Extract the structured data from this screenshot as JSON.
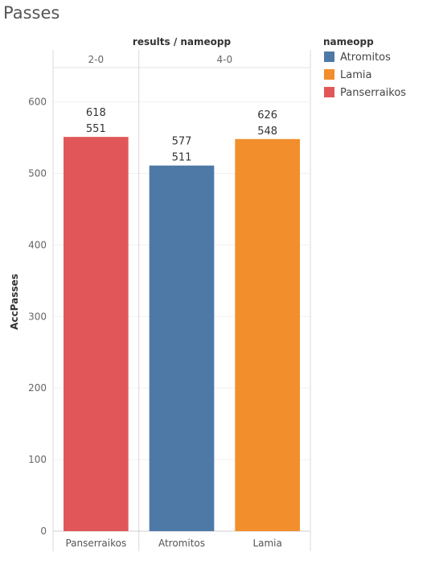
{
  "title": "Passes",
  "column_header": "results / nameopp",
  "legend": {
    "title": "nameopp",
    "items": [
      {
        "label": "Atromitos",
        "color": "#4e79a7"
      },
      {
        "label": "Lamia",
        "color": "#f28e2b"
      },
      {
        "label": "Panserraikos",
        "color": "#e15759"
      }
    ]
  },
  "chart_data": {
    "type": "bar",
    "ylabel": "AccPasses",
    "ylim": [
      0,
      640
    ],
    "yticks": [
      0,
      100,
      200,
      300,
      400,
      500,
      600
    ],
    "grid": true,
    "panes": [
      {
        "label": "2-0",
        "categories": [
          "Panserraikos"
        ]
      },
      {
        "label": "4-0",
        "categories": [
          "Atromitos",
          "Lamia"
        ]
      }
    ],
    "bars": [
      {
        "category": "Panserraikos",
        "result": "2-0",
        "value": 551,
        "total_label": "618",
        "color": "#e15759"
      },
      {
        "category": "Atromitos",
        "result": "4-0",
        "value": 511,
        "total_label": "577",
        "color": "#4e79a7"
      },
      {
        "category": "Lamia",
        "result": "4-0",
        "value": 548,
        "total_label": "626",
        "color": "#f28e2b"
      }
    ]
  }
}
